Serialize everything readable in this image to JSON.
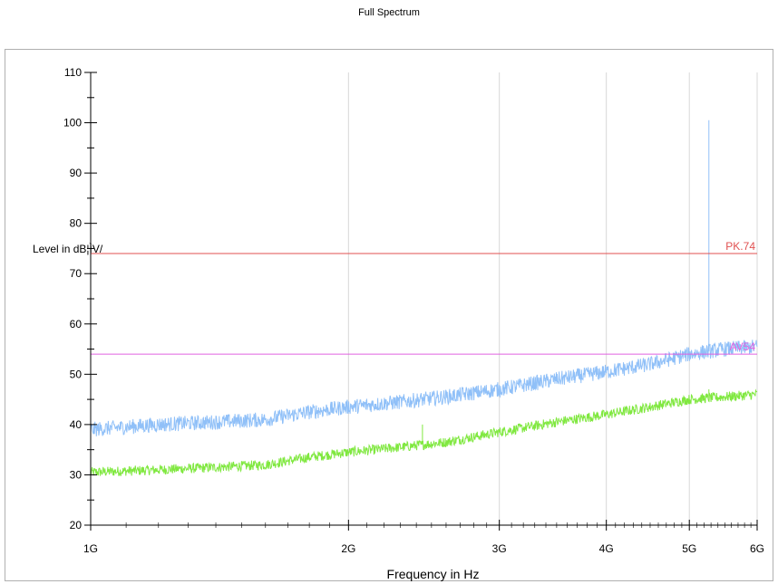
{
  "page": {
    "title": "Full Spectrum"
  },
  "chart_data": {
    "type": "line",
    "title": "Full Spectrum",
    "xlabel": "Frequency  in  Hz",
    "ylabel": "Level  in  dB¦ÌV/",
    "x_scale": "log",
    "xlim": [
      1000000000,
      6000000000
    ],
    "ylim": [
      20,
      110
    ],
    "x_ticks": [
      {
        "value": 1000000000,
        "label": "1G"
      },
      {
        "value": 2000000000,
        "label": "2G"
      },
      {
        "value": 3000000000,
        "label": "3G"
      },
      {
        "value": 4000000000,
        "label": "4G"
      },
      {
        "value": 5000000000,
        "label": "5G"
      },
      {
        "value": 6000000000,
        "label": "6G"
      }
    ],
    "y_ticks": [
      20,
      30,
      40,
      50,
      60,
      70,
      80,
      90,
      100,
      110
    ],
    "grid": "vertical at major x ticks",
    "limits": [
      {
        "label": "PK.74",
        "value": 74,
        "color": "#e05050"
      },
      {
        "label": "AV54",
        "value": 54,
        "color": "#e060e0"
      }
    ],
    "series": [
      {
        "color": "#90c0f8",
        "noise_band": 3,
        "x": [
          1000000000,
          1200000000,
          1400000000,
          1600000000,
          1800000000,
          2000000000,
          2300000000,
          2600000000,
          3000000000,
          3500000000,
          4000000000,
          4500000000,
          5000000000,
          5500000000,
          6000000000
        ],
        "y": [
          39,
          40,
          40.5,
          41,
          42.5,
          43.5,
          44.5,
          45.5,
          47,
          49,
          50.5,
          52,
          54,
          55,
          55.5
        ],
        "spikes": [
          {
            "x": 5270000000,
            "y": 100.5
          }
        ]
      },
      {
        "color": "#80e840",
        "noise_band": 2,
        "x": [
          1000000000,
          1200000000,
          1400000000,
          1600000000,
          1800000000,
          2000000000,
          2300000000,
          2600000000,
          3000000000,
          3500000000,
          4000000000,
          4500000000,
          5000000000,
          5500000000,
          6000000000
        ],
        "y": [
          30.5,
          31,
          31.5,
          32,
          33.5,
          34.5,
          35.5,
          36.5,
          38.5,
          40.5,
          42,
          43.5,
          45,
          45.5,
          46
        ],
        "spikes": [
          {
            "x": 2440000000,
            "y": 40
          },
          {
            "x": 5270000000,
            "y": 47
          }
        ]
      }
    ]
  }
}
